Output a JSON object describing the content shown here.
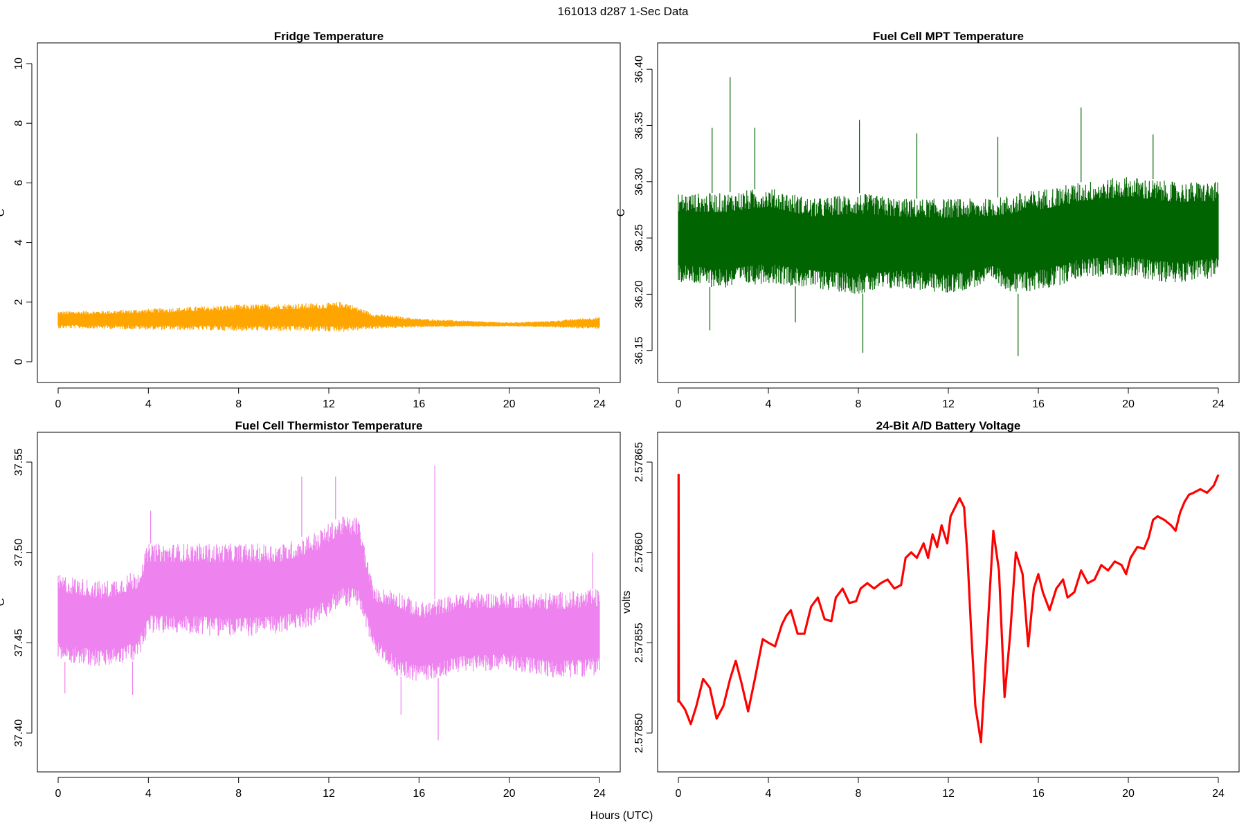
{
  "suptitle": "161013   d287   1-Sec Data",
  "xlabel": "Hours (UTC)",
  "chart_data": [
    {
      "type": "line",
      "title": "Fridge Temperature",
      "xlabel": "Hours (UTC)",
      "ylabel": "C",
      "color": "#ffa500",
      "xlim": [
        0,
        24
      ],
      "ylim": [
        0,
        10
      ],
      "xticks": [
        "0",
        "4",
        "8",
        "12",
        "16",
        "20",
        "24"
      ],
      "yticks": [
        "0",
        "2",
        "4",
        "6",
        "8",
        "10"
      ],
      "envelope": {
        "x": [
          0,
          2,
          4,
          6,
          8,
          10,
          12,
          12.7,
          14,
          16,
          18,
          20,
          22,
          23,
          24
        ],
        "low": [
          1.12,
          1.1,
          1.07,
          1.05,
          1.03,
          1.02,
          1.0,
          1.0,
          1.1,
          1.15,
          1.17,
          1.18,
          1.15,
          1.12,
          1.1
        ],
        "high": [
          1.7,
          1.72,
          1.78,
          1.85,
          1.92,
          1.95,
          1.98,
          2.02,
          1.62,
          1.45,
          1.38,
          1.32,
          1.38,
          1.45,
          1.5
        ]
      }
    },
    {
      "type": "line",
      "title": "Fuel Cell MPT Temperature",
      "xlabel": "Hours (UTC)",
      "ylabel": "C",
      "color": "#006400",
      "xlim": [
        0,
        24
      ],
      "ylim": [
        36.14,
        36.405
      ],
      "xticks": [
        "0",
        "4",
        "8",
        "12",
        "16",
        "20",
        "24"
      ],
      "yticks": [
        "36.15",
        "36.20",
        "36.25",
        "36.30",
        "36.35",
        "36.40"
      ],
      "envelope": {
        "x": [
          0,
          2,
          4,
          6,
          8,
          10,
          12,
          14,
          15,
          16.5,
          18,
          20,
          22,
          24
        ],
        "low": [
          36.21,
          36.205,
          36.21,
          36.205,
          36.2,
          36.205,
          36.2,
          36.21,
          36.2,
          36.205,
          36.215,
          36.215,
          36.21,
          36.215
        ],
        "high": [
          36.29,
          36.29,
          36.295,
          36.285,
          36.29,
          36.285,
          36.285,
          36.285,
          36.29,
          36.295,
          36.3,
          36.305,
          36.3,
          36.3
        ]
      },
      "spikes": [
        {
          "x": 2.3,
          "y": 36.393
        },
        {
          "x": 8.05,
          "y": 36.355
        },
        {
          "x": 17.9,
          "y": 36.366
        },
        {
          "x": 1.5,
          "y": 36.348
        },
        {
          "x": 3.4,
          "y": 36.348
        },
        {
          "x": 10.6,
          "y": 36.343
        },
        {
          "x": 14.2,
          "y": 36.34
        },
        {
          "x": 21.1,
          "y": 36.342
        },
        {
          "x": 8.2,
          "y": 36.148
        },
        {
          "x": 15.1,
          "y": 36.145
        },
        {
          "x": 1.4,
          "y": 36.168
        },
        {
          "x": 5.2,
          "y": 36.175
        }
      ]
    },
    {
      "type": "line",
      "title": "Fuel Cell Thermistor Temperature",
      "xlabel": "Hours (UTC)",
      "ylabel": "C",
      "color": "#ee82ee",
      "xlim": [
        0,
        24
      ],
      "ylim": [
        37.39,
        37.555
      ],
      "xticks": [
        "0",
        "4",
        "8",
        "12",
        "16",
        "20",
        "24"
      ],
      "yticks": [
        "37.40",
        "37.45",
        "37.50",
        "37.55"
      ],
      "envelope": {
        "x": [
          0,
          2,
          3.5,
          4,
          5.5,
          8,
          10,
          11.5,
          12.5,
          13.3,
          14,
          15,
          16,
          18,
          20,
          22,
          24
        ],
        "low": [
          37.44,
          37.436,
          37.44,
          37.455,
          37.455,
          37.453,
          37.455,
          37.46,
          37.47,
          37.47,
          37.445,
          37.432,
          37.428,
          37.434,
          37.435,
          37.43,
          37.432
        ],
        "high": [
          37.488,
          37.484,
          37.49,
          37.505,
          37.505,
          37.505,
          37.505,
          37.512,
          37.52,
          37.52,
          37.48,
          37.48,
          37.472,
          37.478,
          37.478,
          37.478,
          37.48
        ]
      },
      "spikes": [
        {
          "x": 16.7,
          "y": 37.548
        },
        {
          "x": 10.8,
          "y": 37.542
        },
        {
          "x": 12.3,
          "y": 37.542
        },
        {
          "x": 4.1,
          "y": 37.523
        },
        {
          "x": 16.85,
          "y": 37.396
        },
        {
          "x": 15.2,
          "y": 37.41
        },
        {
          "x": 3.3,
          "y": 37.421
        },
        {
          "x": 0.3,
          "y": 37.422
        },
        {
          "x": 23.7,
          "y": 37.5
        }
      ]
    },
    {
      "type": "line",
      "title": "24-Bit A/D Battery Voltage",
      "xlabel": "Hours (UTC)",
      "ylabel": "volts",
      "color": "#ff0000",
      "xlim": [
        0,
        24
      ],
      "ylim": [
        2.57849,
        2.578655
      ],
      "xticks": [
        "0",
        "4",
        "8",
        "12",
        "16",
        "20",
        "24"
      ],
      "yticks": [
        "2.57850",
        "2.57855",
        "2.57860",
        "2.57865"
      ],
      "x": [
        0,
        0.01,
        0.02,
        0.3,
        0.55,
        0.8,
        1.1,
        1.4,
        1.7,
        2.0,
        2.3,
        2.55,
        2.8,
        3.1,
        3.4,
        3.75,
        4.0,
        4.3,
        4.6,
        4.8,
        5.0,
        5.3,
        5.6,
        5.9,
        6.2,
        6.5,
        6.8,
        7.0,
        7.3,
        7.6,
        7.9,
        8.1,
        8.4,
        8.7,
        9.0,
        9.3,
        9.6,
        9.9,
        10.1,
        10.35,
        10.6,
        10.9,
        11.1,
        11.3,
        11.5,
        11.7,
        11.95,
        12.1,
        12.3,
        12.5,
        12.7,
        12.85,
        13.0,
        13.2,
        13.45,
        13.7,
        14.0,
        14.25,
        14.5,
        14.75,
        15.0,
        15.3,
        15.55,
        15.8,
        16.0,
        16.2,
        16.5,
        16.8,
        17.1,
        17.3,
        17.6,
        17.9,
        18.2,
        18.5,
        18.8,
        19.1,
        19.4,
        19.7,
        19.9,
        20.1,
        20.4,
        20.7,
        20.9,
        21.1,
        21.3,
        21.6,
        21.9,
        22.1,
        22.3,
        22.5,
        22.7,
        22.9,
        23.2,
        23.5,
        23.8,
        24.0
      ],
      "y": [
        2.578517,
        2.578643,
        2.578518,
        2.578513,
        2.578505,
        2.578515,
        2.57853,
        2.578525,
        2.578508,
        2.578515,
        2.57853,
        2.57854,
        2.578528,
        2.578512,
        2.57853,
        2.578552,
        2.57855,
        2.578548,
        2.57856,
        2.578565,
        2.578568,
        2.578555,
        2.578555,
        2.57857,
        2.578575,
        2.578563,
        2.578562,
        2.578575,
        2.57858,
        2.578572,
        2.578573,
        2.57858,
        2.578583,
        2.57858,
        2.578583,
        2.578585,
        2.57858,
        2.578582,
        2.578597,
        2.5786,
        2.578597,
        2.578605,
        2.578597,
        2.57861,
        2.578603,
        2.578615,
        2.578605,
        2.57862,
        2.578625,
        2.57863,
        2.578625,
        2.578598,
        2.57856,
        2.578515,
        2.578495,
        2.578548,
        2.578612,
        2.57859,
        2.57852,
        2.578555,
        2.5786,
        2.578588,
        2.578548,
        2.57858,
        2.578588,
        2.578578,
        2.578568,
        2.57858,
        2.578585,
        2.578575,
        2.578578,
        2.57859,
        2.578583,
        2.578585,
        2.578593,
        2.57859,
        2.578595,
        2.578593,
        2.578588,
        2.578597,
        2.578603,
        2.578602,
        2.578608,
        2.578618,
        2.57862,
        2.578618,
        2.578615,
        2.578612,
        2.578622,
        2.578628,
        2.578632,
        2.578633,
        2.578635,
        2.578633,
        2.578637,
        2.578643
      ]
    }
  ]
}
